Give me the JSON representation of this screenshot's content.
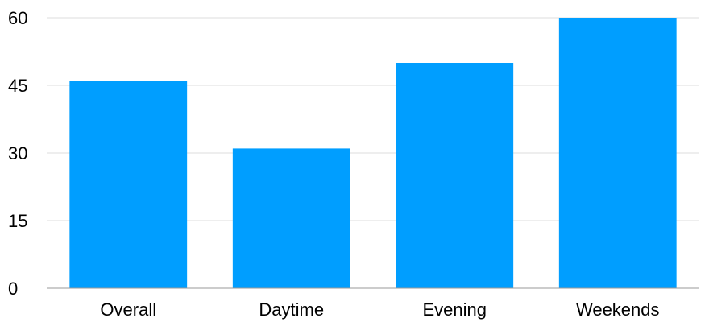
{
  "chart_data": {
    "type": "bar",
    "categories": [
      "Overall",
      "Daytime",
      "Evening",
      "Weekends"
    ],
    "values": [
      46,
      31,
      50,
      60
    ],
    "title": "",
    "xlabel": "",
    "ylabel": "",
    "ylim": [
      0,
      60
    ],
    "yticks": [
      0,
      15,
      30,
      45,
      60
    ],
    "ytick_labels": [
      "0",
      "15",
      "30",
      "45",
      "60"
    ],
    "grid": true,
    "legend": "none",
    "bar_color": "#009EFF"
  }
}
